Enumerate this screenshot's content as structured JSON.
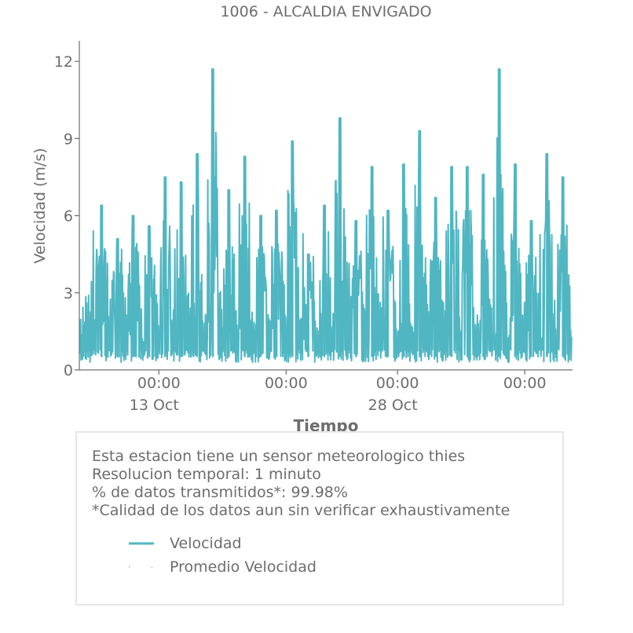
{
  "chart_data": {
    "type": "line",
    "title": "1006 - ALCALDIA ENVIGADO",
    "xlabel": "Tiempo",
    "ylabel": "Velocidad (m/s)",
    "ylim": [
      0,
      12.8
    ],
    "y_ticks": [
      "0",
      "3",
      "6",
      "9",
      "12"
    ],
    "y_tick_values": [
      0,
      3,
      6,
      9,
      12
    ],
    "x_range": [
      "2018-10-08",
      "2018-11-08"
    ],
    "x_ticks": [
      {
        "date": "2018-10-13",
        "time": "00:00",
        "day": "13 Oct"
      },
      {
        "date": "2018-10-21",
        "time": "00:00",
        "day": ""
      },
      {
        "date": "2018-10-28",
        "time": "00:00",
        "day": "28 Oct"
      },
      {
        "date": "2018-11-05",
        "time": "00:00",
        "day": ""
      }
    ],
    "grid": false,
    "legend_position": "bottom",
    "colors": {
      "series": "#4fb6c2",
      "text": "#6d6d6d",
      "axis": "#6d6d6d"
    },
    "series": [
      {
        "name": "Velocidad",
        "x": [
          "2018-10-09",
          "2018-10-10",
          "2018-10-11",
          "2018-10-12",
          "2018-10-13",
          "2018-10-14",
          "2018-10-15",
          "2018-10-16",
          "2018-10-17",
          "2018-10-18",
          "2018-10-19",
          "2018-10-20",
          "2018-10-21",
          "2018-10-22",
          "2018-10-23",
          "2018-10-24",
          "2018-10-25",
          "2018-10-26",
          "2018-10-27",
          "2018-10-28",
          "2018-10-29",
          "2018-10-30",
          "2018-10-31",
          "2018-11-01",
          "2018-11-02",
          "2018-11-03",
          "2018-11-04",
          "2018-11-05",
          "2018-11-06",
          "2018-11-07"
        ],
        "values": [
          6.4,
          5.1,
          6.0,
          5.6,
          7.5,
          7.3,
          8.4,
          11.7,
          7.0,
          8.3,
          6.0,
          6.2,
          8.9,
          4.5,
          6.4,
          9.8,
          5.8,
          7.9,
          6.2,
          8.0,
          9.3,
          6.7,
          7.9,
          7.9,
          7.6,
          11.7,
          8.0,
          5.8,
          8.4,
          7.5
        ]
      },
      {
        "name": "Promedio Velocidad",
        "x": [],
        "values": []
      }
    ]
  },
  "info": {
    "line1": "Esta estacion tiene un sensor meteorologico thies",
    "line2": "Resolucion temporal: 1 minuto",
    "line3": "% de datos transmitidos*: 99.98%",
    "line4": "*Calidad de los datos aun sin verificar exhaustivamente"
  },
  "legend": {
    "item1": "Velocidad",
    "item2": "Promedio Velocidad"
  }
}
